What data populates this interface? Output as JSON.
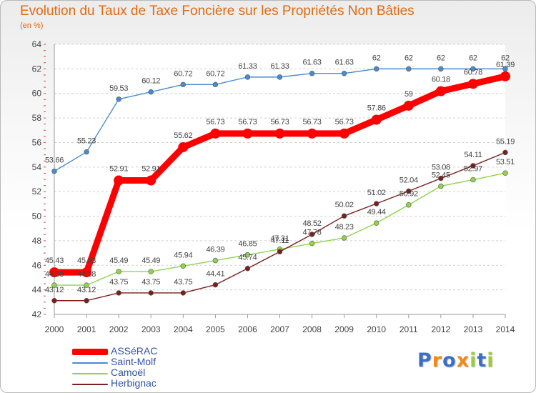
{
  "chart_data": {
    "type": "line",
    "title": "Evolution du Taux de Taxe Foncière sur les Propriétés Non Bâties",
    "subtitle": "(en %)",
    "xlabel": "",
    "ylabel": "",
    "x": [
      "2000",
      "2001",
      "2002",
      "2003",
      "2004",
      "2005",
      "2006",
      "2007",
      "2008",
      "2009",
      "2010",
      "2011",
      "2012",
      "2013",
      "2014"
    ],
    "ylim": [
      42,
      64
    ],
    "yticks": [
      42,
      44,
      46,
      48,
      50,
      52,
      54,
      56,
      58,
      60,
      62,
      64
    ],
    "grid": "horizontal dashed",
    "series": [
      {
        "name": "ASSéRAC",
        "color": "#ff0000",
        "values": [
          45.43,
          45.43,
          52.91,
          52.91,
          55.62,
          56.73,
          56.73,
          56.73,
          56.73,
          56.73,
          57.86,
          59,
          60.18,
          60.78,
          61.39
        ],
        "labels": [
          "45.43",
          "45.43",
          "52.91",
          "52.91",
          "55.62",
          "56.73",
          "56.73",
          "56.73",
          "56.73",
          "56.73",
          "57.86",
          "59",
          "60.18",
          "60.78",
          "61.39"
        ]
      },
      {
        "name": "Saint-Molf",
        "color": "#4a8bd0",
        "values": [
          53.66,
          55.23,
          59.53,
          60.12,
          60.72,
          60.72,
          61.33,
          61.33,
          61.63,
          61.63,
          62,
          62,
          62,
          62,
          62
        ],
        "labels": [
          "53.66",
          "55.23",
          "59.53",
          "60.12",
          "60.72",
          "60.72",
          "61.33",
          "61.33",
          "61.63",
          "61.63",
          "62",
          "62",
          "62",
          "62",
          "62"
        ]
      },
      {
        "name": "Camoël",
        "color": "#8fd44c",
        "values": [
          44.38,
          44.38,
          45.49,
          45.49,
          45.94,
          46.39,
          46.85,
          47.31,
          47.78,
          48.23,
          49.44,
          50.92,
          52.45,
          52.97,
          53.51
        ],
        "labels": [
          "44.38",
          "44.38",
          "45.49",
          "45.49",
          "45.94",
          "46.39",
          "46.85",
          "47.31",
          "47.78",
          "48.23",
          "49.44",
          "50.92",
          "52.45",
          "52.97",
          "53.51"
        ]
      },
      {
        "name": "Herbignac",
        "color": "#7a1f1f",
        "values": [
          43.12,
          43.12,
          43.75,
          43.75,
          43.75,
          44.41,
          45.74,
          47.11,
          48.52,
          50.02,
          51.02,
          52.04,
          53.08,
          54.11,
          55.19
        ],
        "labels": [
          "43.12",
          "43.12",
          "43.75",
          "43.75",
          "43.75",
          "44.41",
          "45.74",
          "47.11",
          "48.52",
          "50.02",
          "51.02",
          "52.04",
          "53.08",
          "54.11",
          "55.19"
        ]
      }
    ]
  },
  "legend": [
    {
      "label": "ASSéRAC",
      "color": "#ff0000"
    },
    {
      "label": "Saint-Molf",
      "color": "#4a8bd0"
    },
    {
      "label": "Camoël",
      "color": "#8fd44c"
    },
    {
      "label": "Herbignac",
      "color": "#7a1f1f"
    }
  ],
  "logo": {
    "text": "Proxiti",
    "letters": [
      {
        "ch": "P",
        "color": "#3a6fc9"
      },
      {
        "ch": "r",
        "color": "#f08a1c"
      },
      {
        "ch": "o",
        "color": "#3a6fc9"
      },
      {
        "ch": "x",
        "color": "#f08a1c"
      },
      {
        "ch": "i",
        "color": "#9ccc3c"
      },
      {
        "ch": "t",
        "color": "#3a6fc9"
      },
      {
        "ch": "i",
        "color": "#9ccc3c"
      }
    ]
  }
}
